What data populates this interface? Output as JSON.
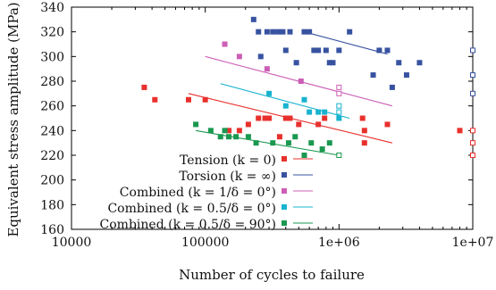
{
  "chart_data": {
    "type": "scatter",
    "title": "",
    "xlabel": "Number of cycles to failure",
    "ylabel": "Equivalent stress amplitude (MPa)",
    "xscale": "log",
    "xlim": [
      10000,
      10000000
    ],
    "ylim": [
      160,
      340
    ],
    "x_ticks": [
      10000,
      100000,
      1000000,
      10000000
    ],
    "x_tick_labels": [
      "10000",
      "100000",
      "1e+06",
      "1e+07"
    ],
    "y_ticks": [
      160,
      180,
      200,
      220,
      240,
      260,
      280,
      300,
      320,
      340
    ],
    "y_tick_labels": [
      "160",
      "180",
      "200",
      "220",
      "240",
      "260",
      "280",
      "300",
      "320",
      "340"
    ],
    "grid": false,
    "legend_position": "bottom-center",
    "series": [
      {
        "name": "Tension (k = 0)",
        "color": "#e8302c",
        "points": [
          [
            35000,
            275
          ],
          [
            42000,
            265
          ],
          [
            75000,
            265
          ],
          [
            100000,
            265
          ],
          [
            150000,
            240
          ],
          [
            180000,
            240
          ],
          [
            210000,
            245
          ],
          [
            250000,
            250
          ],
          [
            280000,
            250
          ],
          [
            300000,
            250
          ],
          [
            360000,
            235
          ],
          [
            400000,
            250
          ],
          [
            430000,
            250
          ],
          [
            500000,
            245
          ],
          [
            700000,
            245
          ],
          [
            780000,
            250
          ],
          [
            1500000,
            250
          ],
          [
            1550000,
            230
          ],
          [
            1550000,
            240
          ],
          [
            2300000,
            245
          ],
          [
            8000000,
            240
          ]
        ],
        "runouts": [
          [
            10000000,
            240
          ],
          [
            10000000,
            230
          ],
          [
            10000000,
            220
          ]
        ],
        "fit": [
          [
            75000,
            270
          ],
          [
            2500000,
            230
          ]
        ]
      },
      {
        "name": "Torsion (k = ∞)",
        "color": "#3752a0",
        "points": [
          [
            230000,
            330
          ],
          [
            250000,
            320
          ],
          [
            260000,
            300
          ],
          [
            290000,
            320
          ],
          [
            320000,
            320
          ],
          [
            350000,
            320
          ],
          [
            380000,
            320
          ],
          [
            400000,
            305
          ],
          [
            430000,
            320
          ],
          [
            480000,
            295
          ],
          [
            550000,
            320
          ],
          [
            600000,
            320
          ],
          [
            650000,
            305
          ],
          [
            700000,
            305
          ],
          [
            800000,
            305
          ],
          [
            850000,
            295
          ],
          [
            900000,
            295
          ],
          [
            1000000,
            305
          ],
          [
            1200000,
            320
          ],
          [
            1800000,
            285
          ],
          [
            2000000,
            305
          ],
          [
            2300000,
            305
          ],
          [
            2500000,
            275
          ],
          [
            2800000,
            295
          ],
          [
            3200000,
            285
          ],
          [
            4000000,
            295
          ]
        ],
        "runouts": [
          [
            10000000,
            305
          ],
          [
            10000000,
            285
          ],
          [
            10000000,
            270
          ]
        ],
        "fit": [
          [
            550000,
            320
          ],
          [
            2300000,
            302
          ]
        ]
      },
      {
        "name": "Combined (k = 1/δ = 0°)",
        "color": "#cc5fb5",
        "points": [
          [
            140000,
            310
          ],
          [
            180000,
            300
          ],
          [
            290000,
            290
          ],
          [
            520000,
            280
          ]
        ],
        "runouts": [
          [
            1000000,
            275
          ],
          [
            1000000,
            270
          ]
        ],
        "fit": [
          [
            100000,
            300
          ],
          [
            2500000,
            260
          ]
        ]
      },
      {
        "name": "Combined (k = 0.5/δ = 0°)",
        "color": "#17b3cf",
        "points": [
          [
            300000,
            270
          ],
          [
            400000,
            260
          ],
          [
            550000,
            265
          ],
          [
            600000,
            255
          ],
          [
            700000,
            255
          ],
          [
            780000,
            255
          ],
          [
            1000000,
            250
          ]
        ],
        "runouts": [
          [
            1000000,
            260
          ],
          [
            1000000,
            255
          ]
        ],
        "fit": [
          [
            130000,
            278
          ],
          [
            1200000,
            250
          ]
        ]
      },
      {
        "name": "Combined (k = 0.5/δ = 90°)",
        "color": "#1a9850",
        "points": [
          [
            85000,
            245
          ],
          [
            110000,
            240
          ],
          [
            130000,
            235
          ],
          [
            140000,
            240
          ],
          [
            150000,
            235
          ],
          [
            170000,
            235
          ],
          [
            210000,
            235
          ],
          [
            240000,
            230
          ],
          [
            320000,
            230
          ],
          [
            420000,
            230
          ],
          [
            470000,
            235
          ],
          [
            550000,
            220
          ],
          [
            620000,
            230
          ],
          [
            750000,
            225
          ],
          [
            850000,
            230
          ]
        ],
        "runouts": [
          [
            1000000,
            220
          ]
        ],
        "fit": [
          [
            85000,
            240
          ],
          [
            1000000,
            220
          ]
        ]
      }
    ]
  }
}
